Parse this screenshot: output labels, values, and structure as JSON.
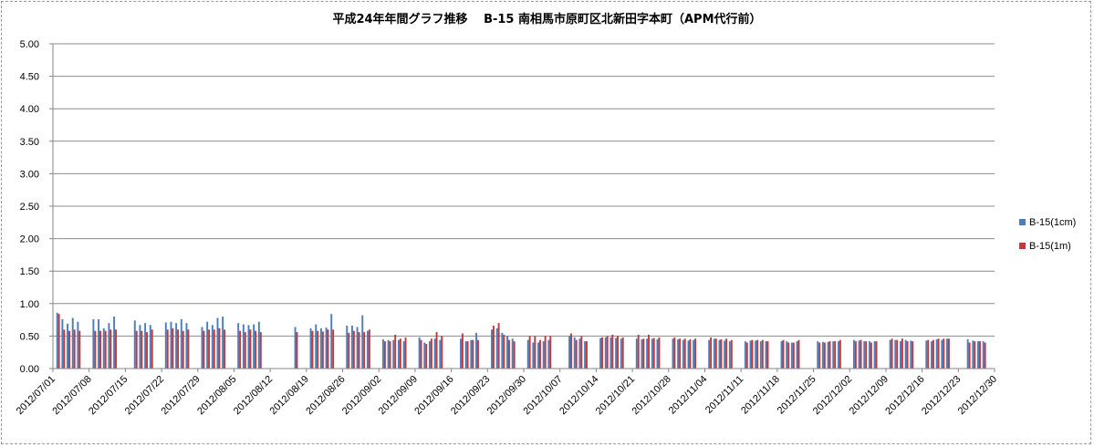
{
  "chart_data": {
    "type": "bar",
    "title": "平成24年年間グラフ推移　 B-15 南相馬市原町区北新田字本町（APM代行前）",
    "xlabel": "",
    "ylabel": "",
    "ylim": [
      0,
      5
    ],
    "y_ticks": [
      "0.00",
      "0.50",
      "1.00",
      "1.50",
      "2.00",
      "2.50",
      "3.00",
      "3.50",
      "4.00",
      "4.50",
      "5.00"
    ],
    "x_tick_labels": [
      "2012/07/01",
      "2012/07/08",
      "2012/07/15",
      "2012/07/22",
      "2012/07/29",
      "2012/08/05",
      "2012/08/12",
      "2012/08/19",
      "2012/08/26",
      "2012/09/02",
      "2012/09/09",
      "2012/09/16",
      "2012/09/23",
      "2012/09/30",
      "2012/10/07",
      "2012/10/14",
      "2012/10/21",
      "2012/10/28",
      "2012/11/04",
      "2012/11/11",
      "2012/11/18",
      "2012/11/25",
      "2012/12/02",
      "2012/12/09",
      "2012/12/16",
      "2012/12/23",
      "2012/12/30"
    ],
    "grid": true,
    "legend_position": "right",
    "colors": {
      "series1": "#4a7ebf",
      "series2": "#c0393b"
    },
    "series": [
      {
        "name": "B-15(1cm)",
        "points": [
          [
            "2012-07-02",
            0.86
          ],
          [
            "2012-07-03",
            0.76
          ],
          [
            "2012-07-04",
            0.69
          ],
          [
            "2012-07-05",
            0.78
          ],
          [
            "2012-07-06",
            0.72
          ],
          [
            "2012-07-09",
            0.76
          ],
          [
            "2012-07-10",
            0.76
          ],
          [
            "2012-07-11",
            0.62
          ],
          [
            "2012-07-12",
            0.7
          ],
          [
            "2012-07-13",
            0.8
          ],
          [
            "2012-07-17",
            0.74
          ],
          [
            "2012-07-18",
            0.67
          ],
          [
            "2012-07-19",
            0.7
          ],
          [
            "2012-07-20",
            0.67
          ],
          [
            "2012-07-23",
            0.71
          ],
          [
            "2012-07-24",
            0.72
          ],
          [
            "2012-07-25",
            0.7
          ],
          [
            "2012-07-26",
            0.76
          ],
          [
            "2012-07-27",
            0.7
          ],
          [
            "2012-07-30",
            0.64
          ],
          [
            "2012-07-31",
            0.72
          ],
          [
            "2012-08-01",
            0.67
          ],
          [
            "2012-08-02",
            0.78
          ],
          [
            "2012-08-03",
            0.8
          ],
          [
            "2012-08-06",
            0.7
          ],
          [
            "2012-08-07",
            0.68
          ],
          [
            "2012-08-08",
            0.67
          ],
          [
            "2012-08-09",
            0.68
          ],
          [
            "2012-08-10",
            0.72
          ],
          [
            "2012-08-17",
            0.64
          ],
          [
            "2012-08-20",
            0.62
          ],
          [
            "2012-08-21",
            0.68
          ],
          [
            "2012-08-22",
            0.62
          ],
          [
            "2012-08-23",
            0.63
          ],
          [
            "2012-08-24",
            0.84
          ],
          [
            "2012-08-27",
            0.66
          ],
          [
            "2012-08-28",
            0.66
          ],
          [
            "2012-08-29",
            0.64
          ],
          [
            "2012-08-30",
            0.82
          ],
          [
            "2012-08-31",
            0.58
          ],
          [
            "2012-09-03",
            0.45
          ],
          [
            "2012-09-04",
            0.44
          ],
          [
            "2012-09-05",
            0.44
          ],
          [
            "2012-09-06",
            0.44
          ],
          [
            "2012-09-07",
            0.42
          ],
          [
            "2012-09-10",
            0.48
          ],
          [
            "2012-09-11",
            0.4
          ],
          [
            "2012-09-12",
            0.42
          ],
          [
            "2012-09-13",
            0.46
          ],
          [
            "2012-09-14",
            0.44
          ],
          [
            "2012-09-18",
            0.46
          ],
          [
            "2012-09-19",
            0.42
          ],
          [
            "2012-09-20",
            0.44
          ],
          [
            "2012-09-21",
            0.55
          ],
          [
            "2012-09-24",
            0.6
          ],
          [
            "2012-09-25",
            0.62
          ],
          [
            "2012-09-26",
            0.55
          ],
          [
            "2012-09-27",
            0.5
          ],
          [
            "2012-09-28",
            0.46
          ],
          [
            "2012-10-01",
            0.44
          ],
          [
            "2012-10-02",
            0.4
          ],
          [
            "2012-10-03",
            0.4
          ],
          [
            "2012-10-04",
            0.42
          ],
          [
            "2012-10-05",
            0.44
          ],
          [
            "2012-10-09",
            0.5
          ],
          [
            "2012-10-10",
            0.48
          ],
          [
            "2012-10-11",
            0.46
          ],
          [
            "2012-10-12",
            0.42
          ],
          [
            "2012-10-15",
            0.47
          ],
          [
            "2012-10-16",
            0.48
          ],
          [
            "2012-10-17",
            0.48
          ],
          [
            "2012-10-18",
            0.47
          ],
          [
            "2012-10-19",
            0.46
          ],
          [
            "2012-10-22",
            0.46
          ],
          [
            "2012-10-23",
            0.45
          ],
          [
            "2012-10-24",
            0.46
          ],
          [
            "2012-10-25",
            0.46
          ],
          [
            "2012-10-26",
            0.45
          ],
          [
            "2012-10-29",
            0.46
          ],
          [
            "2012-10-30",
            0.45
          ],
          [
            "2012-10-31",
            0.44
          ],
          [
            "2012-11-01",
            0.43
          ],
          [
            "2012-11-02",
            0.44
          ],
          [
            "2012-11-05",
            0.44
          ],
          [
            "2012-11-06",
            0.46
          ],
          [
            "2012-11-07",
            0.44
          ],
          [
            "2012-11-08",
            0.43
          ],
          [
            "2012-11-09",
            0.42
          ],
          [
            "2012-11-12",
            0.42
          ],
          [
            "2012-11-13",
            0.43
          ],
          [
            "2012-11-14",
            0.43
          ],
          [
            "2012-11-15",
            0.42
          ],
          [
            "2012-11-16",
            0.42
          ],
          [
            "2012-11-19",
            0.42
          ],
          [
            "2012-11-20",
            0.42
          ],
          [
            "2012-11-21",
            0.4
          ],
          [
            "2012-11-22",
            0.42
          ],
          [
            "2012-11-26",
            0.42
          ],
          [
            "2012-11-27",
            0.41
          ],
          [
            "2012-11-28",
            0.41
          ],
          [
            "2012-11-29",
            0.42
          ],
          [
            "2012-11-30",
            0.42
          ],
          [
            "2012-12-03",
            0.44
          ],
          [
            "2012-12-04",
            0.43
          ],
          [
            "2012-12-05",
            0.42
          ],
          [
            "2012-12-06",
            0.42
          ],
          [
            "2012-12-07",
            0.42
          ],
          [
            "2012-12-10",
            0.44
          ],
          [
            "2012-12-11",
            0.44
          ],
          [
            "2012-12-12",
            0.42
          ],
          [
            "2012-12-13",
            0.44
          ],
          [
            "2012-12-14",
            0.43
          ],
          [
            "2012-12-17",
            0.43
          ],
          [
            "2012-12-18",
            0.42
          ],
          [
            "2012-12-19",
            0.45
          ],
          [
            "2012-12-20",
            0.44
          ],
          [
            "2012-12-21",
            0.46
          ],
          [
            "2012-12-25",
            0.45
          ],
          [
            "2012-12-26",
            0.43
          ],
          [
            "2012-12-27",
            0.42
          ],
          [
            "2012-12-28",
            0.42
          ]
        ]
      },
      {
        "name": "B-15(1m)",
        "points": [
          [
            "2012-07-02",
            0.84
          ],
          [
            "2012-07-03",
            0.6
          ],
          [
            "2012-07-04",
            0.58
          ],
          [
            "2012-07-05",
            0.6
          ],
          [
            "2012-07-06",
            0.58
          ],
          [
            "2012-07-09",
            0.58
          ],
          [
            "2012-07-10",
            0.58
          ],
          [
            "2012-07-11",
            0.58
          ],
          [
            "2012-07-12",
            0.6
          ],
          [
            "2012-07-13",
            0.6
          ],
          [
            "2012-07-17",
            0.58
          ],
          [
            "2012-07-18",
            0.58
          ],
          [
            "2012-07-19",
            0.56
          ],
          [
            "2012-07-20",
            0.6
          ],
          [
            "2012-07-23",
            0.6
          ],
          [
            "2012-07-24",
            0.62
          ],
          [
            "2012-07-25",
            0.6
          ],
          [
            "2012-07-26",
            0.58
          ],
          [
            "2012-07-27",
            0.6
          ],
          [
            "2012-07-30",
            0.58
          ],
          [
            "2012-07-31",
            0.6
          ],
          [
            "2012-08-01",
            0.6
          ],
          [
            "2012-08-02",
            0.62
          ],
          [
            "2012-08-03",
            0.6
          ],
          [
            "2012-08-06",
            0.58
          ],
          [
            "2012-08-07",
            0.56
          ],
          [
            "2012-08-08",
            0.6
          ],
          [
            "2012-08-09",
            0.58
          ],
          [
            "2012-08-10",
            0.56
          ],
          [
            "2012-08-17",
            0.56
          ],
          [
            "2012-08-20",
            0.58
          ],
          [
            "2012-08-21",
            0.58
          ],
          [
            "2012-08-22",
            0.57
          ],
          [
            "2012-08-23",
            0.6
          ],
          [
            "2012-08-24",
            0.6
          ],
          [
            "2012-08-27",
            0.55
          ],
          [
            "2012-08-28",
            0.58
          ],
          [
            "2012-08-29",
            0.56
          ],
          [
            "2012-08-30",
            0.56
          ],
          [
            "2012-08-31",
            0.6
          ],
          [
            "2012-09-03",
            0.42
          ],
          [
            "2012-09-04",
            0.42
          ],
          [
            "2012-09-05",
            0.52
          ],
          [
            "2012-09-06",
            0.46
          ],
          [
            "2012-09-07",
            0.48
          ],
          [
            "2012-09-10",
            0.44
          ],
          [
            "2012-09-11",
            0.38
          ],
          [
            "2012-09-12",
            0.46
          ],
          [
            "2012-09-13",
            0.56
          ],
          [
            "2012-09-14",
            0.5
          ],
          [
            "2012-09-18",
            0.54
          ],
          [
            "2012-09-19",
            0.42
          ],
          [
            "2012-09-20",
            0.44
          ],
          [
            "2012-09-21",
            0.44
          ],
          [
            "2012-09-24",
            0.66
          ],
          [
            "2012-09-25",
            0.7
          ],
          [
            "2012-09-26",
            0.52
          ],
          [
            "2012-09-27",
            0.44
          ],
          [
            "2012-09-28",
            0.42
          ],
          [
            "2012-10-01",
            0.5
          ],
          [
            "2012-10-02",
            0.5
          ],
          [
            "2012-10-03",
            0.44
          ],
          [
            "2012-10-04",
            0.5
          ],
          [
            "2012-10-05",
            0.5
          ],
          [
            "2012-10-09",
            0.54
          ],
          [
            "2012-10-10",
            0.44
          ],
          [
            "2012-10-11",
            0.5
          ],
          [
            "2012-10-12",
            0.42
          ],
          [
            "2012-10-15",
            0.48
          ],
          [
            "2012-10-16",
            0.5
          ],
          [
            "2012-10-17",
            0.52
          ],
          [
            "2012-10-18",
            0.5
          ],
          [
            "2012-10-19",
            0.48
          ],
          [
            "2012-10-22",
            0.52
          ],
          [
            "2012-10-23",
            0.46
          ],
          [
            "2012-10-24",
            0.52
          ],
          [
            "2012-10-25",
            0.47
          ],
          [
            "2012-10-26",
            0.48
          ],
          [
            "2012-10-29",
            0.48
          ],
          [
            "2012-10-30",
            0.46
          ],
          [
            "2012-10-31",
            0.46
          ],
          [
            "2012-11-01",
            0.45
          ],
          [
            "2012-11-02",
            0.46
          ],
          [
            "2012-11-05",
            0.48
          ],
          [
            "2012-11-06",
            0.46
          ],
          [
            "2012-11-07",
            0.45
          ],
          [
            "2012-11-08",
            0.46
          ],
          [
            "2012-11-09",
            0.44
          ],
          [
            "2012-11-12",
            0.4
          ],
          [
            "2012-11-13",
            0.44
          ],
          [
            "2012-11-14",
            0.44
          ],
          [
            "2012-11-15",
            0.44
          ],
          [
            "2012-11-16",
            0.42
          ],
          [
            "2012-11-19",
            0.44
          ],
          [
            "2012-11-20",
            0.4
          ],
          [
            "2012-11-21",
            0.4
          ],
          [
            "2012-11-22",
            0.44
          ],
          [
            "2012-11-26",
            0.4
          ],
          [
            "2012-11-27",
            0.4
          ],
          [
            "2012-11-28",
            0.42
          ],
          [
            "2012-11-29",
            0.42
          ],
          [
            "2012-11-30",
            0.44
          ],
          [
            "2012-12-03",
            0.42
          ],
          [
            "2012-12-04",
            0.44
          ],
          [
            "2012-12-05",
            0.42
          ],
          [
            "2012-12-06",
            0.4
          ],
          [
            "2012-12-07",
            0.42
          ],
          [
            "2012-12-10",
            0.46
          ],
          [
            "2012-12-11",
            0.44
          ],
          [
            "2012-12-12",
            0.46
          ],
          [
            "2012-12-13",
            0.42
          ],
          [
            "2012-12-14",
            0.42
          ],
          [
            "2012-12-17",
            0.44
          ],
          [
            "2012-12-18",
            0.44
          ],
          [
            "2012-12-19",
            0.46
          ],
          [
            "2012-12-20",
            0.46
          ],
          [
            "2012-12-21",
            0.46
          ],
          [
            "2012-12-25",
            0.4
          ],
          [
            "2012-12-26",
            0.42
          ],
          [
            "2012-12-27",
            0.42
          ],
          [
            "2012-12-28",
            0.4
          ]
        ]
      }
    ]
  }
}
